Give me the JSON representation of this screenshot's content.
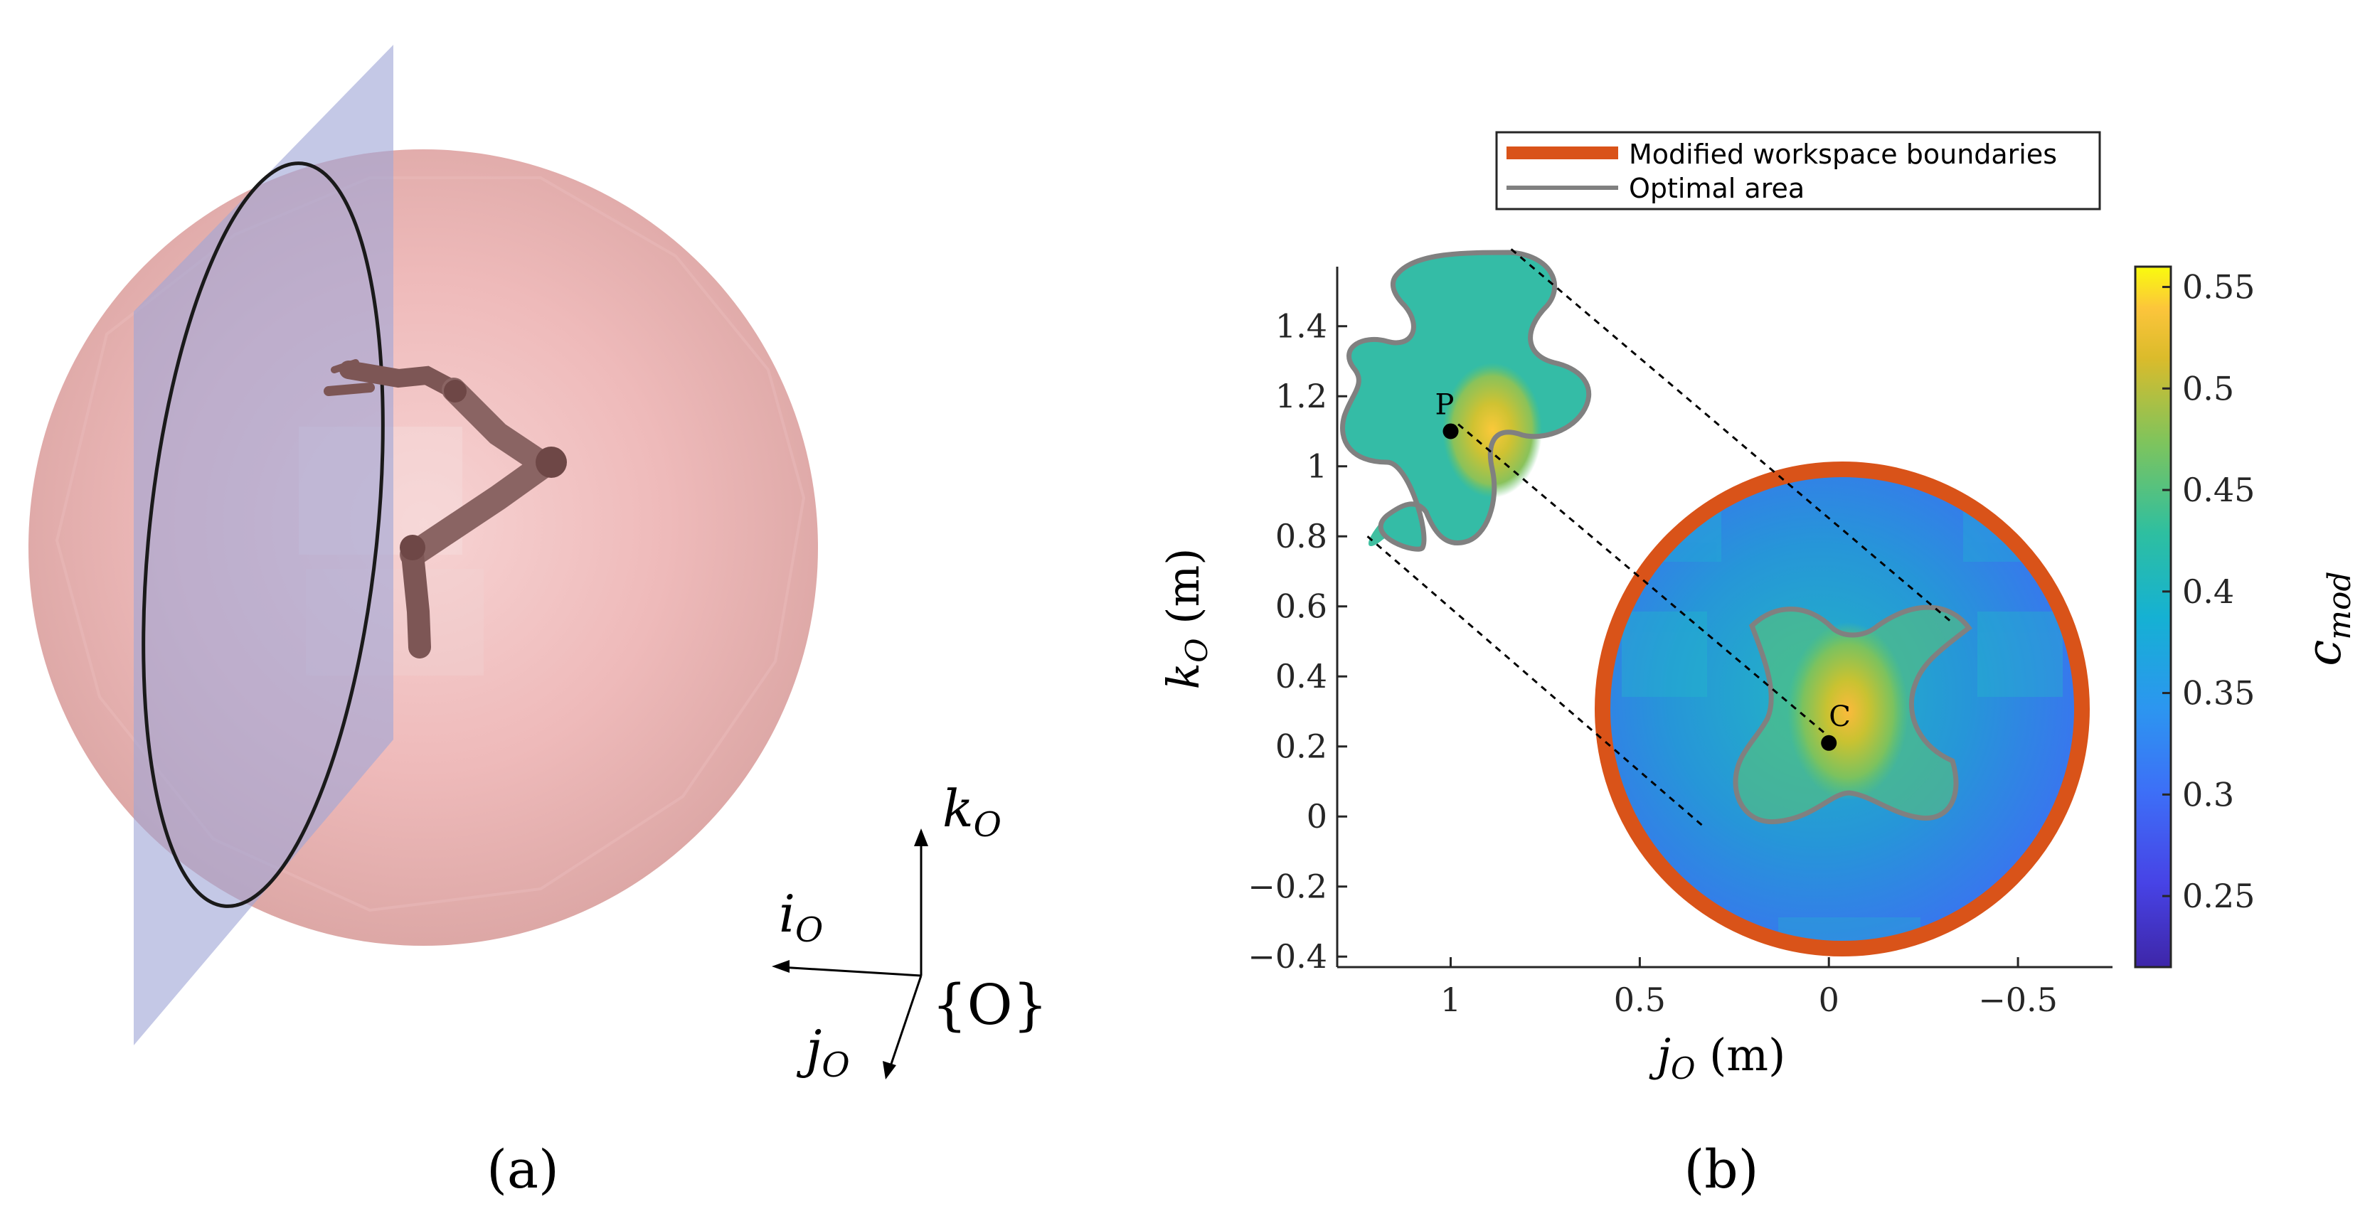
{
  "panel_a": {
    "label": "(a)",
    "axes": {
      "k": "k",
      "k_sub": "O",
      "i": "i",
      "i_sub": "O",
      "j": "j",
      "j_sub": "O",
      "origin": "{O}"
    }
  },
  "panel_b": {
    "label": "(b)"
  },
  "colors": {
    "boundary": "#d95319",
    "optimal": "#808080",
    "sphere": "#e6a5a5",
    "plane": "#9fa6d6",
    "arm": "#8a6463"
  },
  "chart_data": {
    "type": "heatmap",
    "xlabel": "j",
    "xlabel_sub": "O",
    "xlabel_unit": "(m)",
    "ylabel": "k",
    "ylabel_sub": "O",
    "ylabel_unit": "(m)",
    "xlim": [
      1.3,
      -0.75
    ],
    "ylim": [
      -0.43,
      1.57
    ],
    "x_reversed": true,
    "xticks": [
      1,
      0.5,
      0,
      -0.5
    ],
    "xtick_labels": [
      "1",
      "0.5",
      "0",
      "−0.5"
    ],
    "yticks": [
      -0.4,
      -0.2,
      0,
      0.2,
      0.4,
      0.6,
      0.8,
      1,
      1.2,
      1.4
    ],
    "ytick_labels": [
      "−0.4",
      "−0.2",
      "0",
      "0.2",
      "0.4",
      "0.6",
      "0.8",
      "1",
      "1.2",
      "1.4"
    ],
    "colorbar": {
      "label": "c",
      "label_sub": "mod",
      "range": [
        0.215,
        0.56
      ],
      "ticks": [
        0.25,
        0.3,
        0.35,
        0.4,
        0.45,
        0.5,
        0.55
      ],
      "tick_labels": [
        "0.25",
        "0.3",
        "0.35",
        "0.4",
        "0.45",
        "0.5",
        "0.55"
      ],
      "colormap": "parula"
    },
    "legend": {
      "placement": "top",
      "entries": [
        {
          "label": "Modified workspace boundaries",
          "color": "#d95319"
        },
        {
          "label": "Optimal area",
          "color": "#808080"
        }
      ]
    },
    "points": [
      {
        "label": "P",
        "j": 1.0,
        "k": 1.1
      },
      {
        "label": "C",
        "j": 0.0,
        "k": 0.21
      }
    ],
    "workspace_boundary": {
      "shape": "circle",
      "center": [
        0.0,
        0.27
      ],
      "radius": 0.73
    },
    "guide_lines": [
      {
        "from": [
          0.84,
          1.62
        ],
        "to": [
          -0.33,
          0.55
        ]
      },
      {
        "from": [
          0.98,
          1.12
        ],
        "to": [
          -0.02,
          0.21
        ]
      },
      {
        "from": [
          1.22,
          0.8
        ],
        "to": [
          0.33,
          -0.03
        ]
      }
    ]
  }
}
